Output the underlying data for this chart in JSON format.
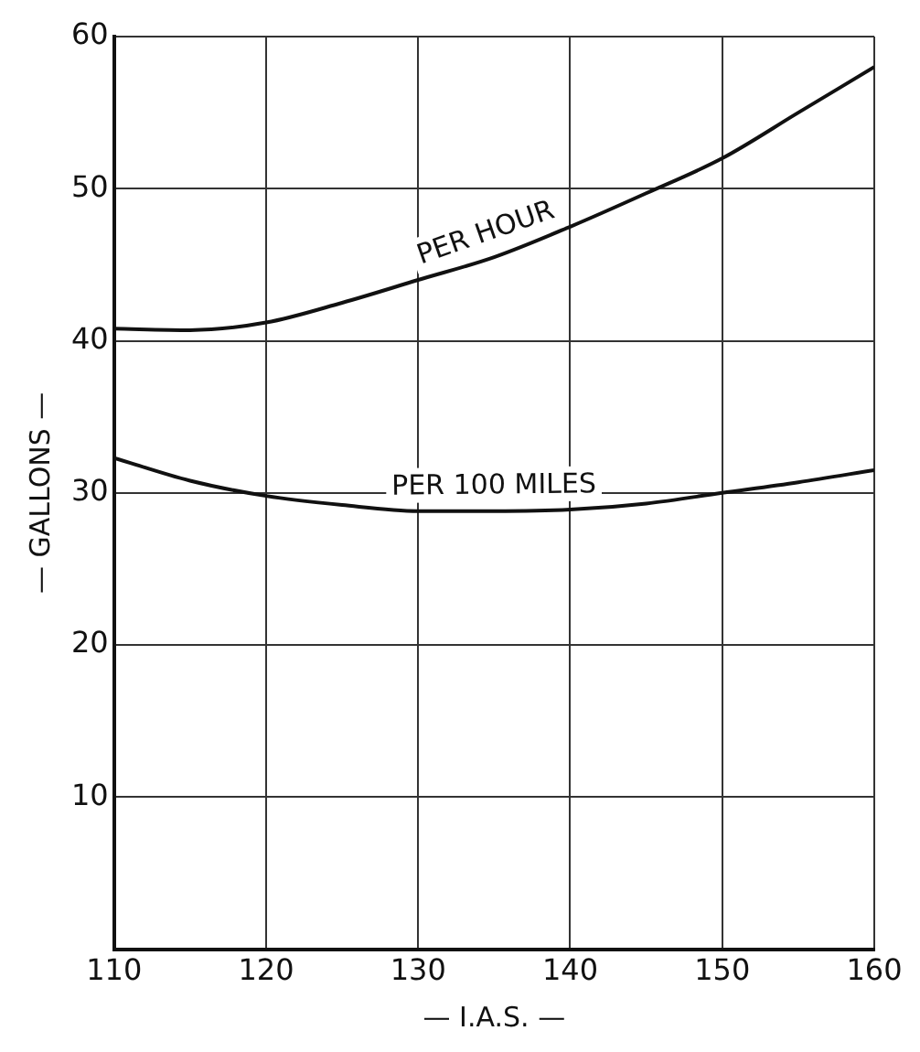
{
  "chart_data": {
    "type": "line",
    "xlabel": "— I.A.S. —",
    "ylabel": "— GALLONS —",
    "x": [
      110,
      115,
      120,
      125,
      130,
      135,
      140,
      145,
      150,
      155,
      160
    ],
    "series": [
      {
        "name": "PER HOUR",
        "color": "#111111",
        "values": [
          40.8,
          40.7,
          41.2,
          42.5,
          44,
          45.5,
          47.5,
          49.7,
          52,
          55,
          58
        ]
      },
      {
        "name": "PER 100 MILES",
        "color": "#111111",
        "values": [
          32.3,
          30.8,
          29.8,
          29.2,
          28.8,
          28.8,
          28.9,
          29.3,
          30,
          30.7,
          31.5
        ]
      }
    ],
    "xlim": [
      110,
      160
    ],
    "xticks": [
      110,
      120,
      130,
      140,
      150,
      160
    ],
    "ylim": [
      0,
      60
    ],
    "yticks": [
      10,
      20,
      30,
      40,
      50,
      60
    ],
    "grid": true,
    "legend": false,
    "marker": "none",
    "line_style": "solid"
  }
}
